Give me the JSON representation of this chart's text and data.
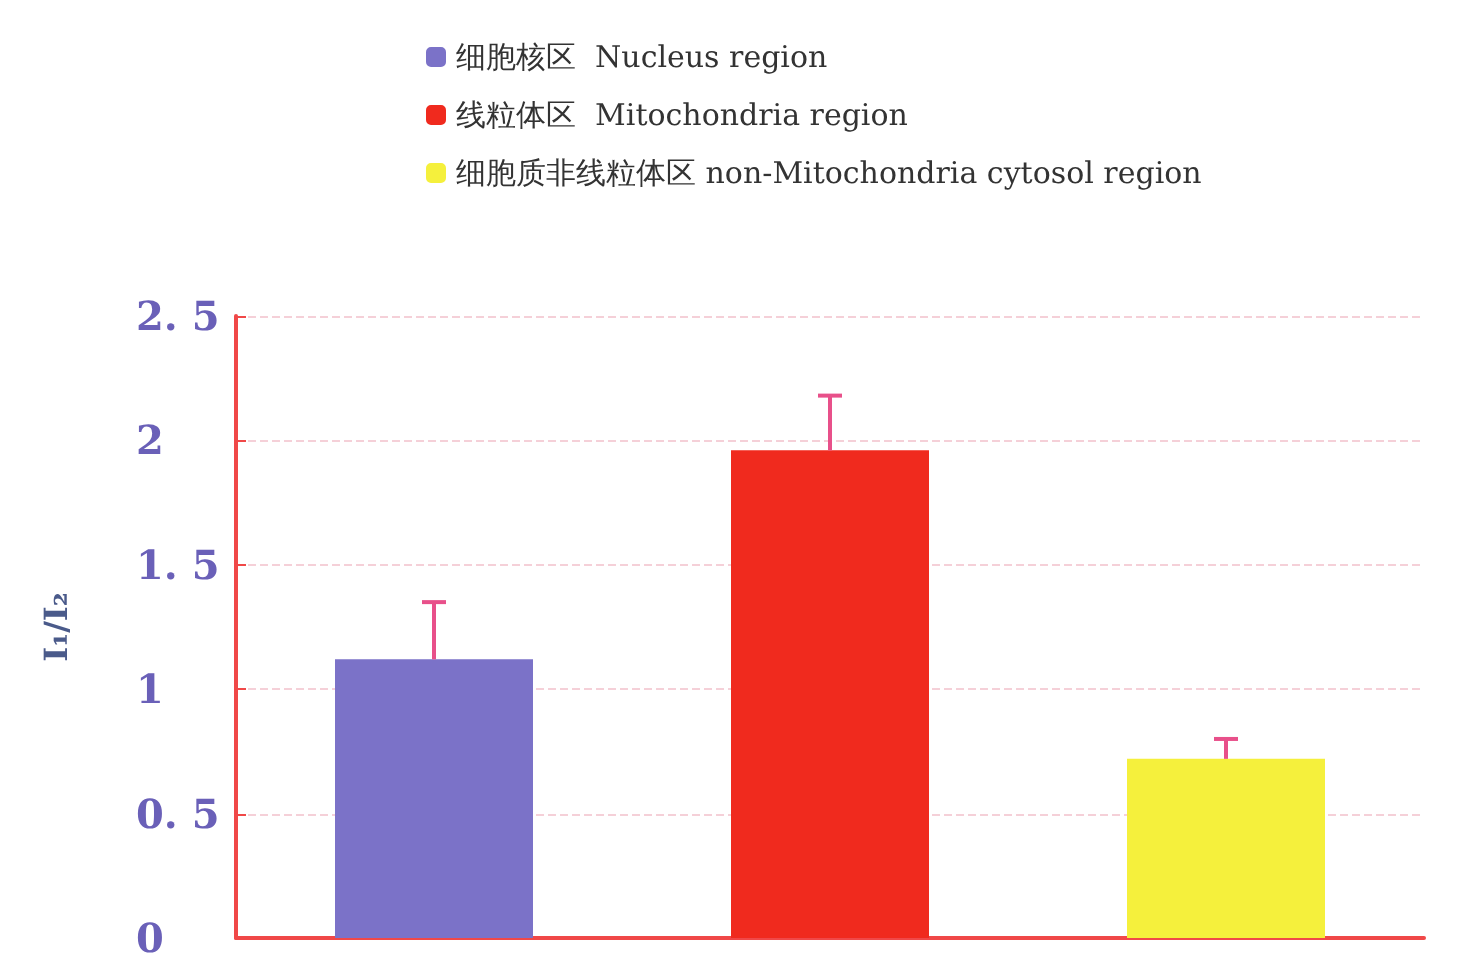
{
  "chart_data": {
    "type": "bar",
    "ylabel": "I₁/I₂",
    "categories": [
      null,
      null,
      null
    ],
    "series": [
      {
        "name": "细胞核区  Nucleus region",
        "color": "#7b72c8",
        "values": [
          1.12,
          null,
          null
        ],
        "errors": [
          [
            1.12,
            1.35
          ],
          null,
          null
        ]
      },
      {
        "name": "线粒体区  Mitochondria region",
        "color": "#f02a1e",
        "values": [
          null,
          1.96,
          null
        ],
        "errors": [
          null,
          [
            1.96,
            2.18
          ],
          null
        ]
      },
      {
        "name": "细胞质非线粒体区 non-Mitochondria cytosol region",
        "color": "#f5f03c",
        "values": [
          null,
          null,
          0.72
        ],
        "errors": [
          null,
          null,
          [
            0.72,
            0.8
          ]
        ]
      }
    ],
    "ylim": [
      0,
      2.5
    ],
    "yticks": [
      0,
      {
        "value": 0.5,
        "label": "0. 5"
      },
      1,
      {
        "value": 1.5,
        "label": "1. 5"
      },
      2,
      {
        "value": 2.5,
        "label": "2. 5"
      }
    ],
    "grid": "y",
    "legend": "top"
  }
}
